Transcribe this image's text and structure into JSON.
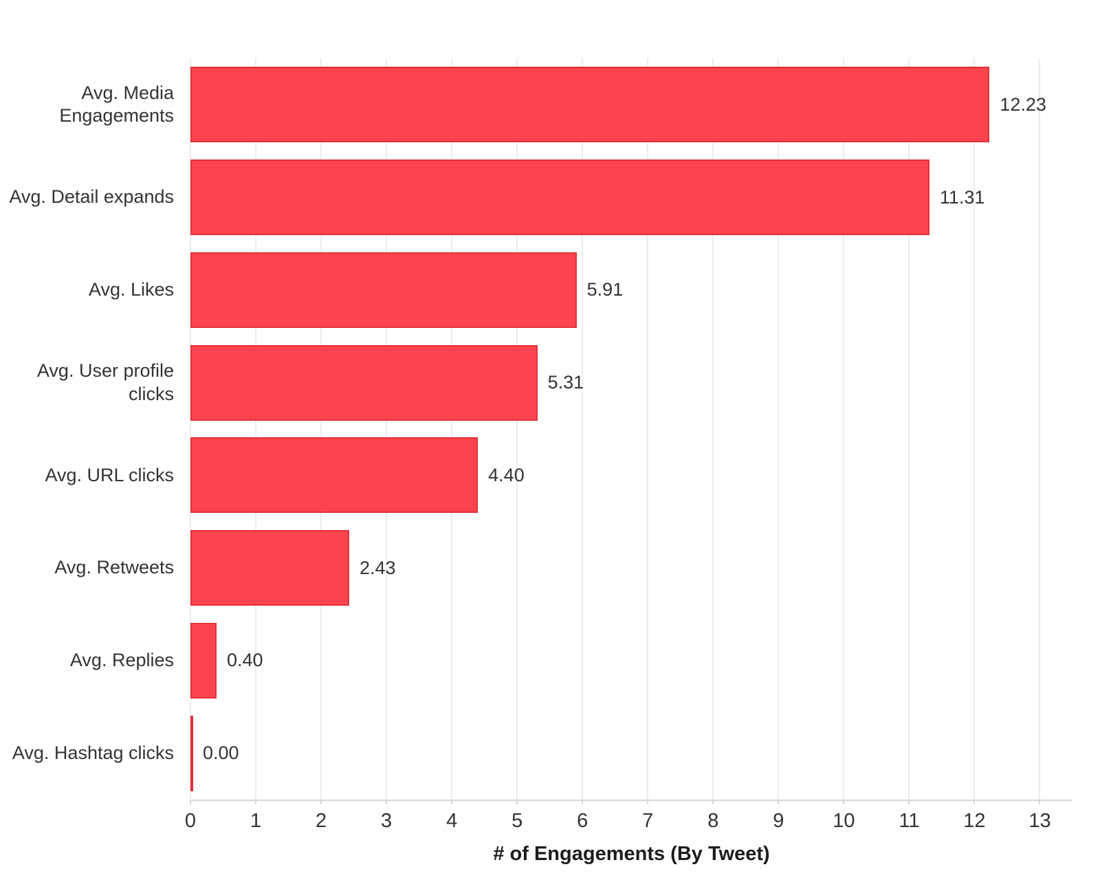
{
  "chart_data": {
    "type": "bar",
    "orientation": "horizontal",
    "title": "",
    "xlabel": "# of Engagements (By Tweet)",
    "ylabel": "",
    "categories": [
      "Avg. Media Engagements",
      "Avg. Detail expands",
      "Avg. Likes",
      "Avg. User profile clicks",
      "Avg. URL clicks",
      "Avg. Retweets",
      "Avg. Replies",
      "Avg. Hashtag clicks"
    ],
    "values": [
      12.23,
      11.31,
      5.91,
      5.31,
      4.4,
      2.43,
      0.4,
      0.0
    ],
    "value_labels": [
      "12.23",
      "11.31",
      "5.91",
      "5.31",
      "4.40",
      "2.43",
      "0.40",
      "0.00"
    ],
    "x_ticks": [
      0,
      1,
      2,
      3,
      4,
      5,
      6,
      7,
      8,
      9,
      10,
      11,
      12,
      13
    ],
    "xlim": [
      0,
      13.5
    ],
    "grid": "vertical-on",
    "legend": "none",
    "colors": {
      "bar_fill": "#fb444d",
      "bar_border": "#e5303a",
      "gridline": "#ececec",
      "axis_line": "#d6d6d6",
      "text": "#333333",
      "background": "#ffffff"
    }
  }
}
